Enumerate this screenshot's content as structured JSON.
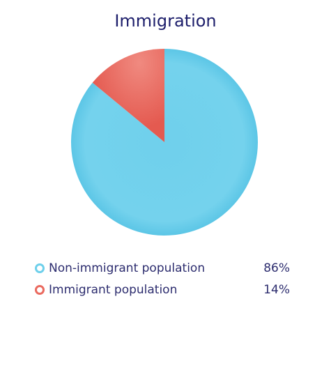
{
  "chart_data": {
    "type": "pie",
    "title": "Immigration",
    "slices": [
      {
        "label": "Non-immigrant population",
        "value": 86,
        "display": "86%",
        "color": "#6ed0eb"
      },
      {
        "label": "Immigrant population",
        "value": 14,
        "display": "14%",
        "color": "#ea6a5f"
      }
    ],
    "legend_position": "bottom"
  }
}
